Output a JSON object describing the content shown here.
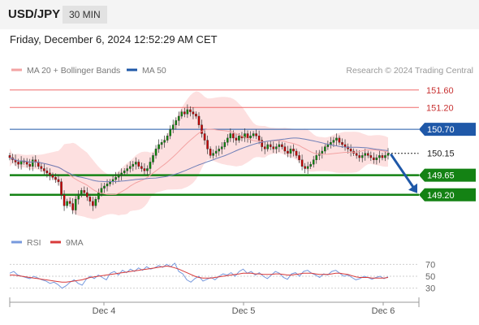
{
  "header": {
    "pair": "USD/JPY",
    "timeframe": "30 MIN"
  },
  "datestamp": "Friday, December 6, 2024 12:52:29 AM CET",
  "legend": {
    "ma20_label": "MA 20 + Bollinger Bands",
    "ma50_label": "MA 50",
    "credit": "Research © 2024 Trading Central",
    "rsi_label": "RSI",
    "ma9_label": "9MA"
  },
  "colors": {
    "resistance": "#f06a6a",
    "pivot": "#1f58a8",
    "support": "#148214",
    "current": "#222222",
    "candle_up": "#0a8a0a",
    "candle_down": "#c80000",
    "band_fill": "#fde0e0",
    "ma20": "#f3a3a3",
    "ma50": "#6f7fb8",
    "rsi": "#7799dd",
    "ma9": "#d83a3a",
    "arrow": "#1f58a8"
  },
  "chart_data": [
    {
      "type": "candlestick",
      "title": "USD/JPY",
      "ylim": [
        148.6,
        151.8
      ],
      "x_tick_labels": [
        "Dec 4",
        "Dec 5",
        "Dec 6"
      ],
      "levels": [
        {
          "value": 151.6,
          "label": "151.60",
          "kind": "resistance"
        },
        {
          "value": 151.2,
          "label": "151.20",
          "kind": "resistance"
        },
        {
          "value": 150.7,
          "label": "150.70",
          "kind": "pivot"
        },
        {
          "value": 150.15,
          "label": "150.15",
          "kind": "current"
        },
        {
          "value": 149.65,
          "label": "149.65",
          "kind": "support"
        },
        {
          "value": 149.2,
          "label": "149.20",
          "kind": "support"
        }
      ],
      "arrow": {
        "from": 150.15,
        "to": 149.2,
        "direction": "down"
      },
      "series": [
        {
          "name": "MA 20 + Bollinger Bands"
        },
        {
          "name": "MA 50"
        }
      ],
      "close": [
        150.05,
        150.0,
        149.95,
        149.9,
        149.98,
        149.95,
        149.9,
        149.85,
        150.0,
        149.95,
        149.85,
        149.8,
        149.75,
        149.7,
        149.65,
        149.6,
        149.55,
        149.5,
        149.2,
        148.95,
        149.05,
        149.0,
        148.85,
        149.1,
        149.2,
        149.3,
        149.25,
        149.15,
        149.05,
        148.95,
        149.1,
        149.25,
        149.35,
        149.4,
        149.45,
        149.5,
        149.55,
        149.6,
        149.65,
        149.7,
        149.75,
        149.8,
        149.85,
        149.9,
        149.95,
        149.85,
        149.8,
        149.75,
        149.8,
        149.95,
        150.1,
        150.25,
        150.35,
        150.4,
        150.45,
        150.55,
        150.7,
        150.8,
        150.9,
        151.0,
        151.1,
        151.05,
        151.15,
        151.1,
        151.05,
        151.0,
        150.8,
        150.6,
        150.45,
        150.25,
        150.1,
        150.15,
        150.2,
        150.25,
        150.3,
        150.4,
        150.5,
        150.6,
        150.5,
        150.45,
        150.55,
        150.5,
        150.6,
        150.5,
        150.55,
        150.6,
        150.55,
        150.45,
        150.3,
        150.25,
        150.35,
        150.3,
        150.25,
        150.3,
        150.35,
        150.3,
        150.2,
        150.15,
        150.25,
        150.2,
        150.1,
        150.0,
        149.85,
        149.8,
        149.85,
        149.9,
        150.0,
        150.1,
        150.15,
        150.2,
        150.3,
        150.35,
        150.4,
        150.45,
        150.5,
        150.4,
        150.35,
        150.3,
        150.25,
        150.2,
        150.15,
        150.1,
        150.05,
        150.1,
        150.15,
        150.1,
        150.05,
        150.0,
        150.05,
        150.1,
        150.05,
        150.1,
        150.15
      ]
    },
    {
      "type": "line",
      "title": "RSI",
      "ylim": [
        20,
        80
      ],
      "y_tick_labels": [
        "70",
        "50",
        "30"
      ],
      "y_tick_values": [
        70,
        50,
        30
      ],
      "series": [
        {
          "name": "RSI",
          "values": [
            55,
            58,
            52,
            50,
            48,
            46,
            50,
            47,
            44,
            42,
            38,
            40,
            36,
            30,
            34,
            40,
            44,
            38,
            35,
            45,
            50,
            46,
            52,
            48,
            44,
            55,
            58,
            52,
            60,
            56,
            62,
            58,
            64,
            60,
            66,
            62,
            64,
            68,
            65,
            70,
            66,
            72,
            58,
            54,
            44,
            40,
            46,
            50,
            42,
            45,
            48,
            44,
            50,
            54,
            52,
            56,
            50,
            58,
            62,
            55,
            58,
            52,
            56,
            50,
            46,
            52,
            58,
            55,
            48,
            45,
            54,
            56,
            50,
            58,
            60,
            55,
            52,
            48,
            54,
            52,
            58,
            60,
            55,
            50,
            52,
            48,
            44,
            46,
            50,
            48,
            45,
            48,
            50,
            46,
            49
          ]
        },
        {
          "name": "9MA",
          "values": [
            52,
            52,
            51,
            50,
            49,
            48,
            47,
            46,
            45,
            44,
            43,
            42,
            41,
            40,
            40,
            41,
            42,
            43,
            44,
            46,
            48,
            49,
            50,
            51,
            52,
            53,
            54,
            55,
            56,
            57,
            58,
            59,
            60,
            61,
            62,
            63,
            64,
            65,
            66,
            67,
            66,
            64,
            62,
            59,
            56,
            53,
            50,
            48,
            47,
            47,
            47,
            48,
            49,
            50,
            51,
            52,
            53,
            54,
            55,
            55,
            55,
            54,
            54,
            53,
            53,
            53,
            54,
            54,
            53,
            52,
            52,
            53,
            54,
            55,
            55,
            55,
            54,
            53,
            53,
            53,
            54,
            55,
            55,
            54,
            53,
            51,
            49,
            48,
            48,
            48,
            47,
            47,
            47,
            47,
            48
          ]
        }
      ]
    }
  ]
}
